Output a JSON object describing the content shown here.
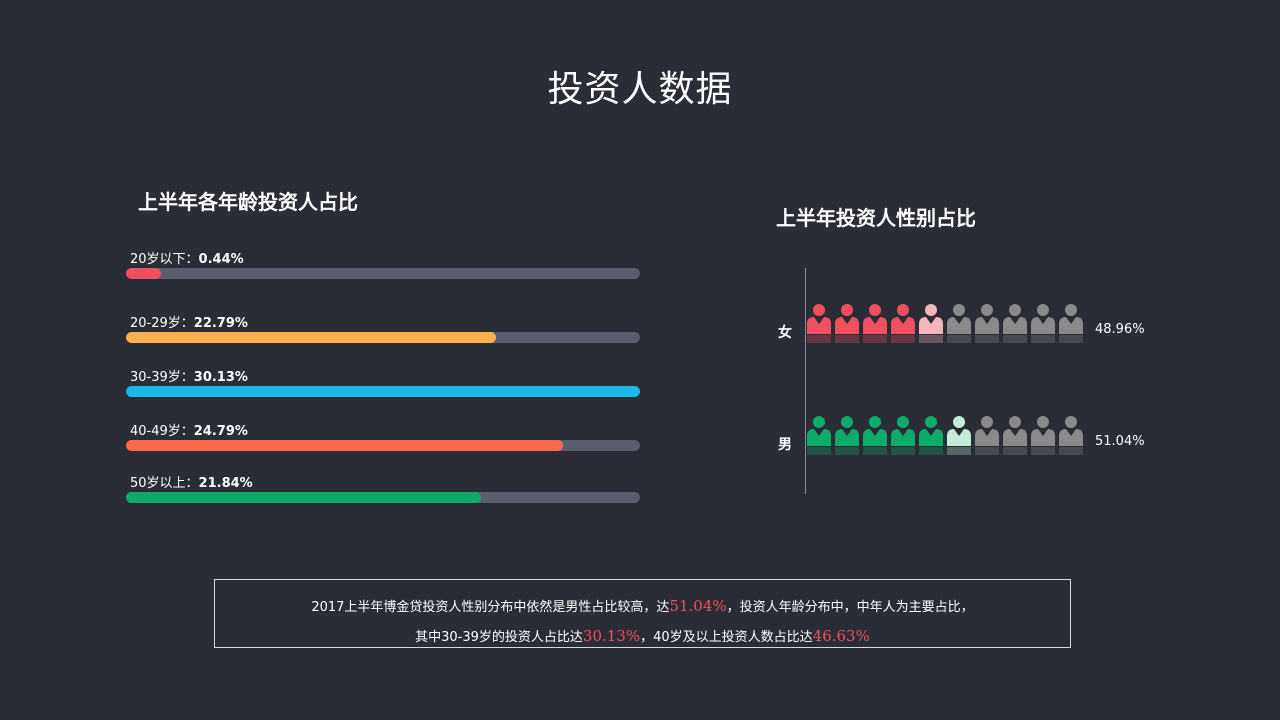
{
  "page": {
    "title": "投资人数据"
  },
  "age_section": {
    "title": "上半年各年龄投资人占比"
  },
  "gender_section": {
    "title": "上半年投资人性别占比"
  },
  "chart_data": [
    {
      "type": "bar",
      "orientation": "horizontal",
      "title": "上半年各年龄投资人占比",
      "xlim": [
        0,
        30.13
      ],
      "bars": [
        {
          "label": "20岁以下：",
          "value_text": "0.44%",
          "value": 0.44,
          "fill": 0.068,
          "color": "#f0505f"
        },
        {
          "label": "20-29岁：",
          "value_text": "22.79%",
          "value": 22.79,
          "fill": 0.72,
          "color": "#fbb24d"
        },
        {
          "label": "30-39岁：",
          "value_text": "30.13%",
          "value": 30.13,
          "fill": 1.0,
          "color": "#1ab7ea"
        },
        {
          "label": "40-49岁：",
          "value_text": "24.79%",
          "value": 24.79,
          "fill": 0.85,
          "color": "#fb6a4a"
        },
        {
          "label": "50岁以上：",
          "value_text": "21.84%",
          "value": 21.84,
          "fill": 0.69,
          "color": "#0cab6a"
        }
      ]
    },
    {
      "type": "pictogram",
      "title": "上半年投资人性别占比",
      "icons_per_row": 10,
      "rows": [
        {
          "label": "女",
          "value_text": "48.96%",
          "value": 48.96,
          "full_icons": 4,
          "partial_icons": 1,
          "color": "#f0505f",
          "partial_color": "#f7b6be",
          "empty_color": "#8a8a8a"
        },
        {
          "label": "男",
          "value_text": "51.04%",
          "value": 51.04,
          "full_icons": 5,
          "partial_icons": 1,
          "color": "#0cab6a",
          "partial_color": "#c4ecd7",
          "empty_color": "#8a8a8a"
        }
      ]
    }
  ],
  "summary": {
    "line1_a": "2017上半年博金贷投资人性别分布中依然是男性占比较高，达",
    "line1_hl": "51.04%",
    "line1_b": "，投资人年龄分布中，中年人为主要占比，",
    "line2_a": "其中30-39岁的投资人占比达",
    "line2_hl1": "30.13%",
    "line2_b": "，40岁及以上投资人数占比达",
    "line2_hl2": "46.63%"
  }
}
